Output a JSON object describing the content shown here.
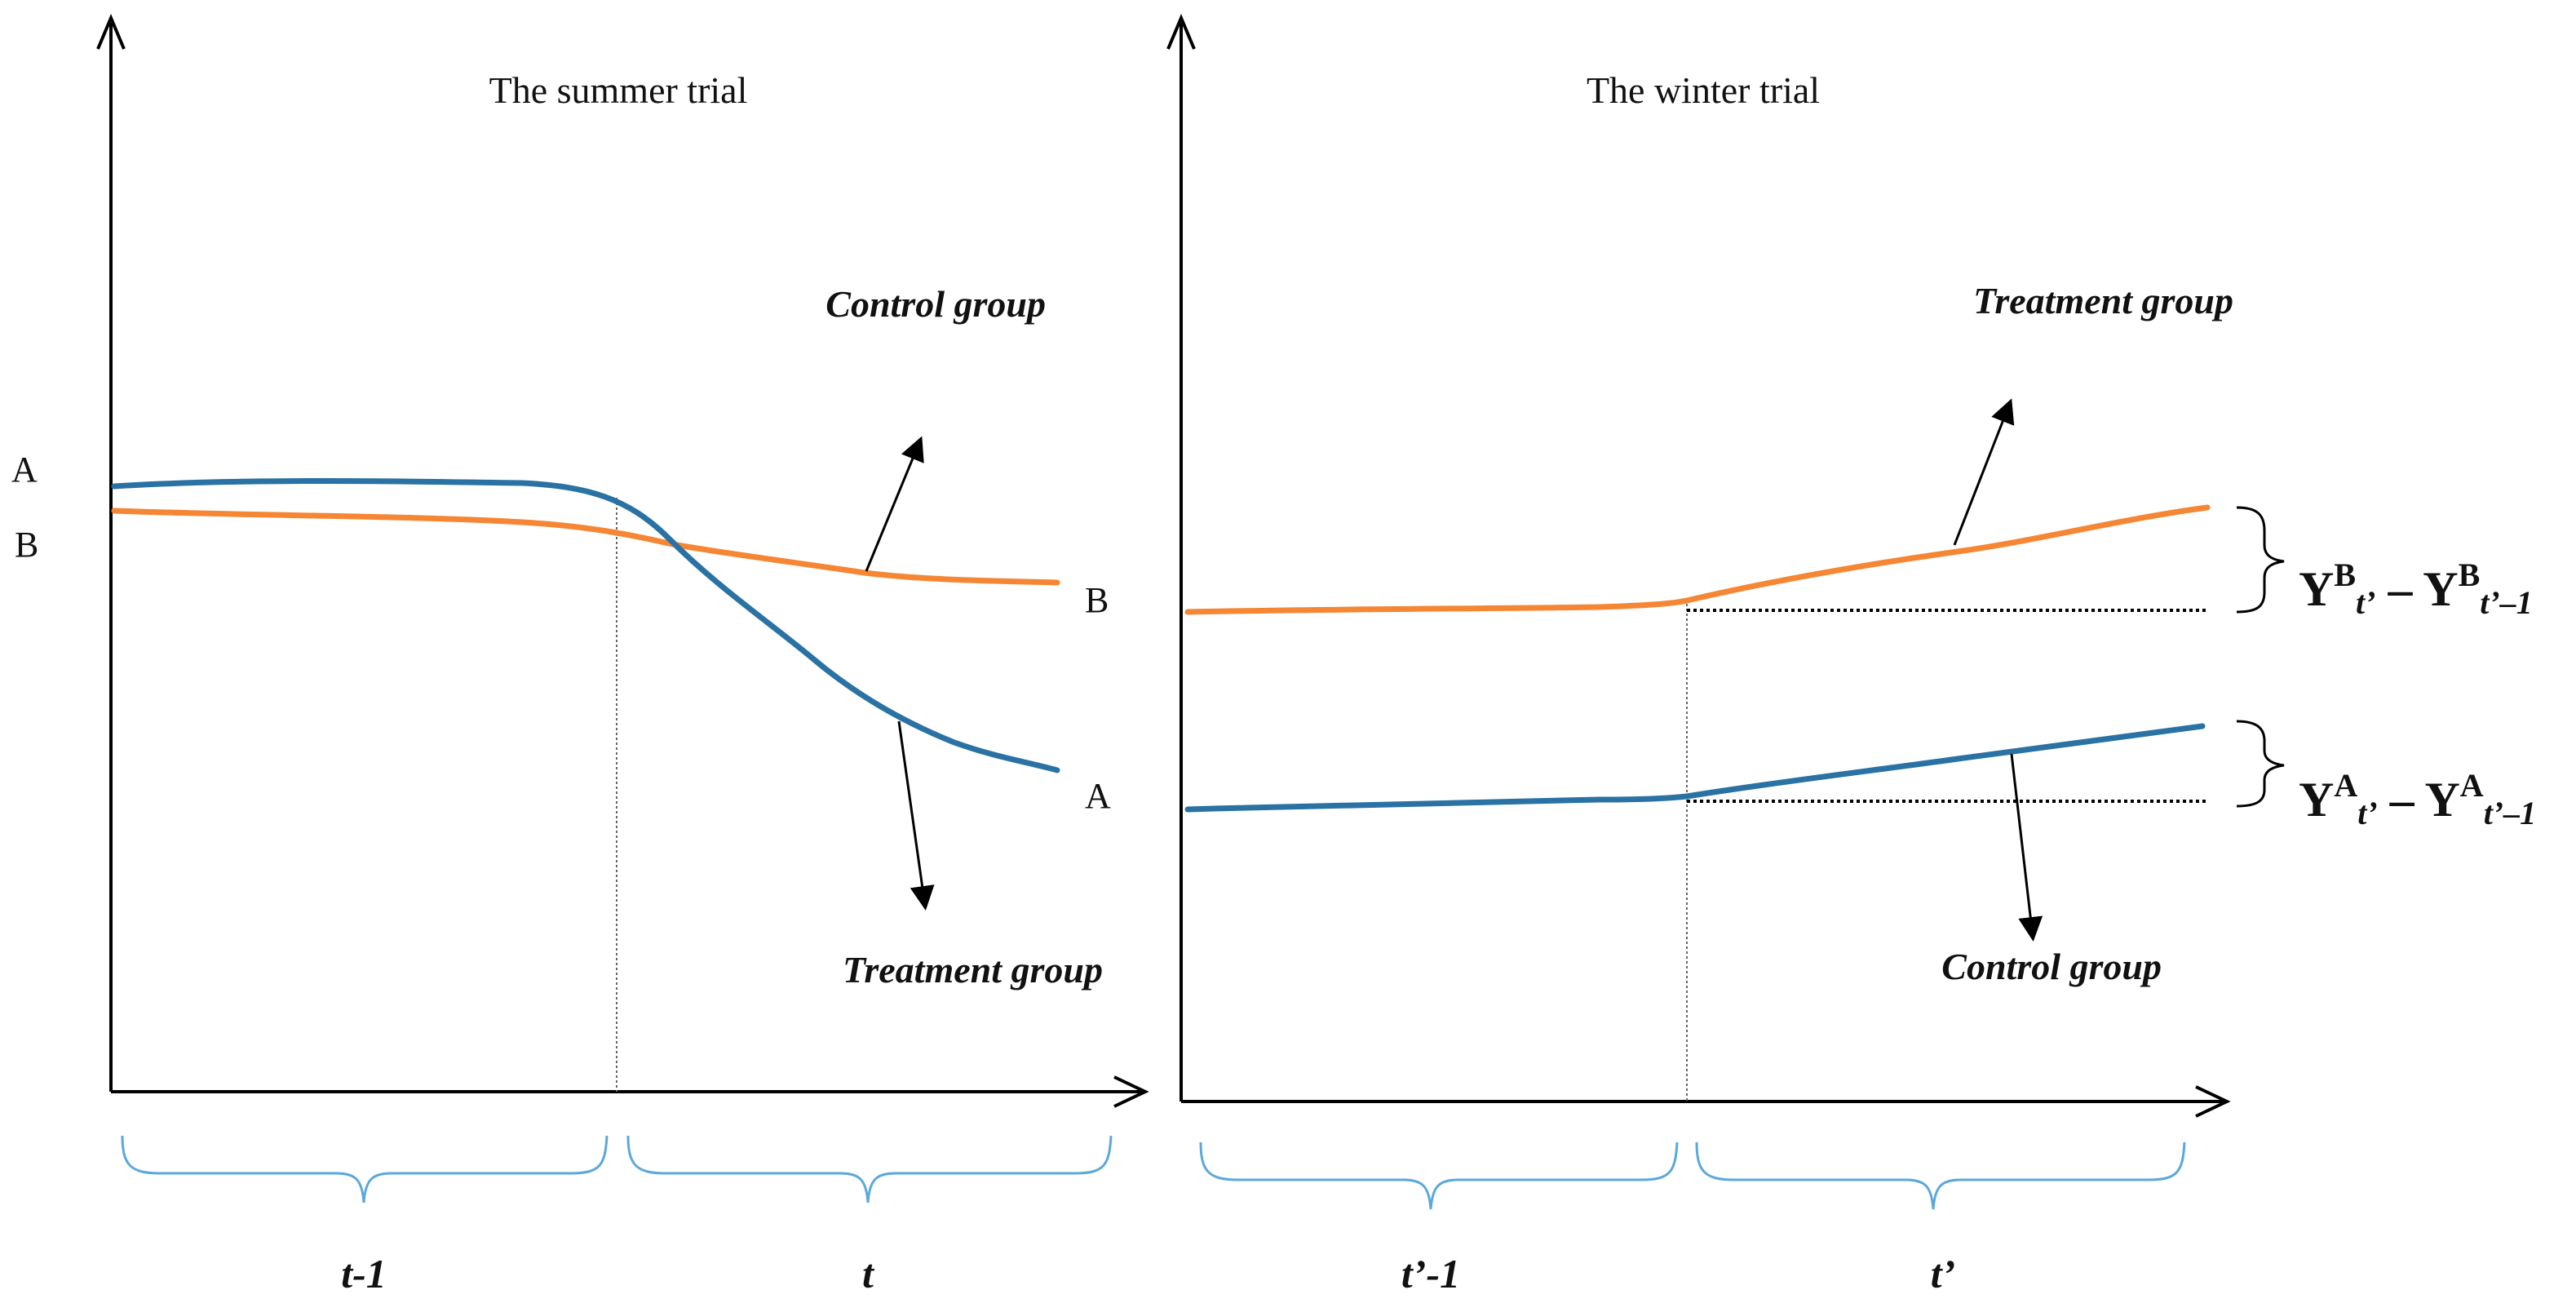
{
  "left_panel": {
    "title": "The summer trial",
    "y_label_a": "A",
    "y_label_b": "B",
    "end_label_b": "B",
    "end_label_a": "A",
    "control_label": "Control group",
    "treatment_label": "Treatment group",
    "period_before": "t-1",
    "period_after": "t"
  },
  "right_panel": {
    "title": "The winter trial",
    "treatment_label": "Treatment group",
    "control_label": "Control group",
    "period_before": "t’-1",
    "period_after": "t’",
    "formula_b": {
      "y1": "Y",
      "sup1": "B",
      "sub1": "t’",
      "minus": " – ",
      "y2": "Y",
      "sup2": "B",
      "sub2": "t’–1"
    },
    "formula_a": {
      "y1": "Y",
      "sup1": "A",
      "sub1": "t’",
      "minus": " – ",
      "y2": "Y",
      "sup2": "A",
      "sub2": "t’–1"
    }
  },
  "colors": {
    "orange": "#F58634",
    "blue": "#2A72A4",
    "axis": "#000000",
    "brace": "#5BA8DC",
    "divider": "#666666"
  }
}
